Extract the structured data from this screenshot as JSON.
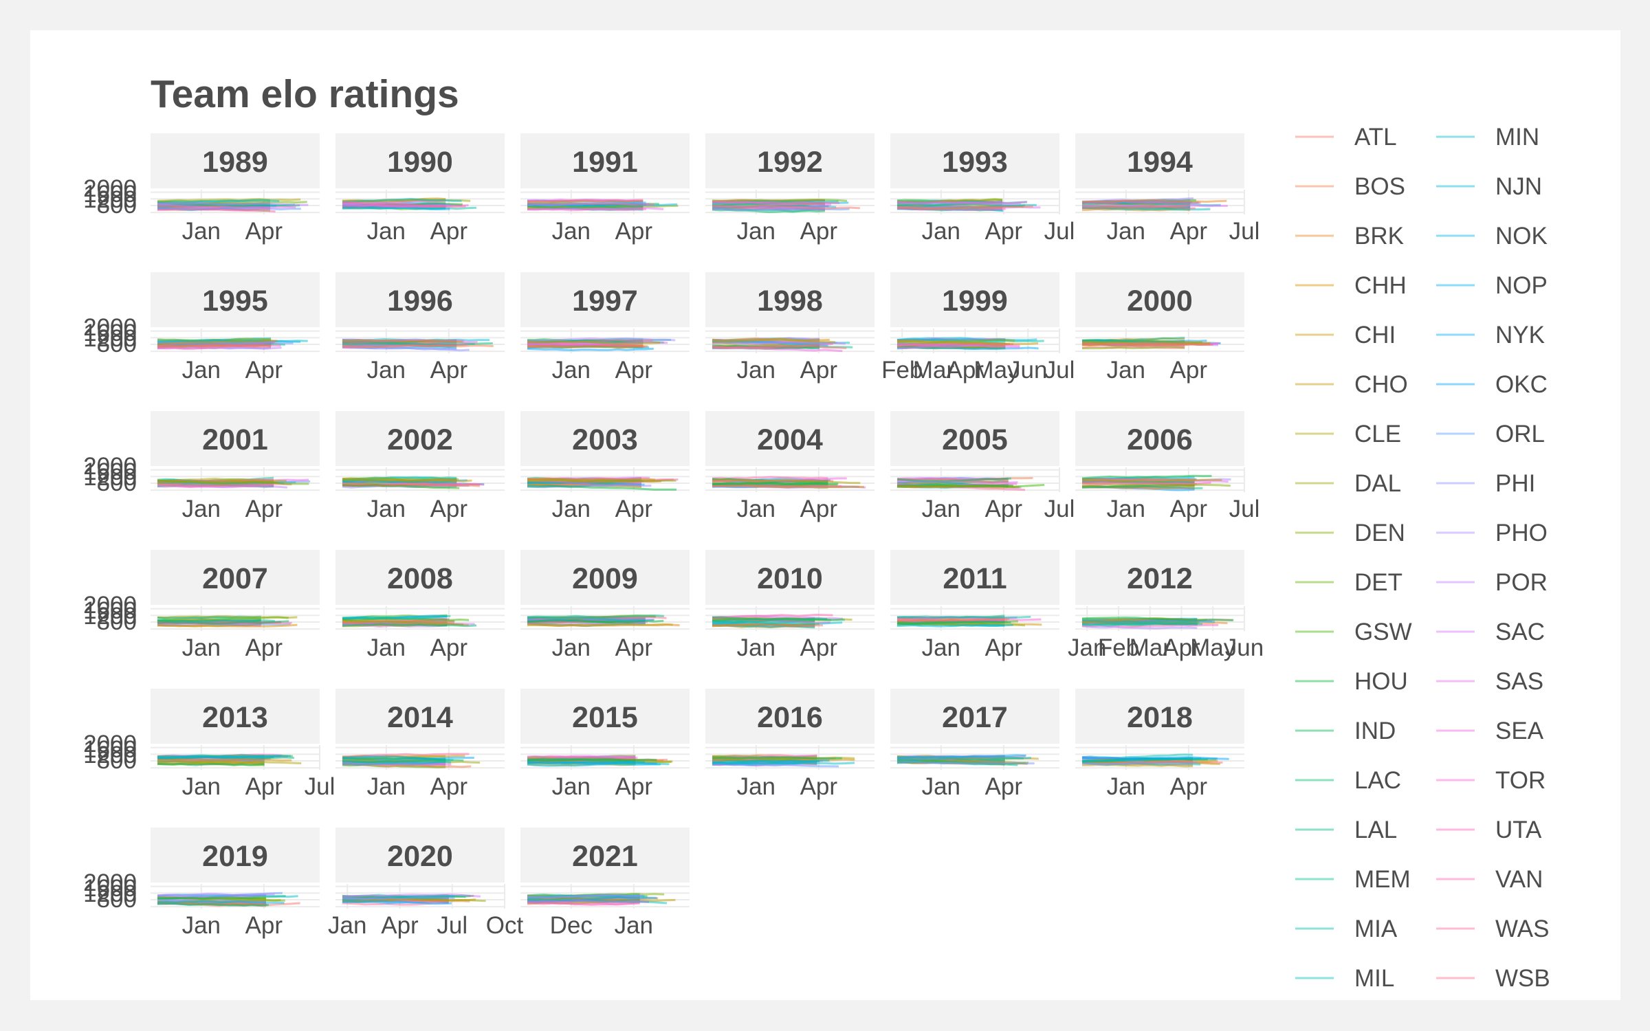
{
  "chart_data": {
    "type": "line",
    "title": "Team elo ratings",
    "xlabel": "",
    "ylabel": "",
    "ylim": [
      1200,
      2100
    ],
    "y_ticks": [
      "2000",
      "1600",
      "1200",
      "800"
    ],
    "grid": true,
    "legend_position": "right",
    "legend_ncol": 2,
    "legend_entries": [
      "ATL",
      "BOS",
      "BRK",
      "CHH",
      "CHI",
      "CHO",
      "CLE",
      "DAL",
      "DEN",
      "DET",
      "GSW",
      "HOU",
      "IND",
      "LAC",
      "LAL",
      "MEM",
      "MIA",
      "MIL",
      "MIN",
      "NJN",
      "NOK",
      "NOP",
      "NYK",
      "OKC",
      "ORL",
      "PHI",
      "PHO",
      "POR",
      "SAC",
      "SAS",
      "SEA",
      "TOR",
      "UTA",
      "VAN",
      "WAS",
      "WSB"
    ],
    "legend_colors": [
      "#f8766d",
      "#f07e4e",
      "#e7861b",
      "#db8e00",
      "#cd9600",
      "#be9c00",
      "#aca300",
      "#99a800",
      "#82ad00",
      "#67b100",
      "#3eb500",
      "#00b83c",
      "#00bb59",
      "#00bd70",
      "#00bf84",
      "#00c097",
      "#00c1a9",
      "#00c0b9",
      "#00bec9",
      "#00bbd8",
      "#00b7e5",
      "#00b2f0",
      "#00acfc",
      "#00a5ff",
      "#619cff",
      "#8b93ff",
      "#aa89ff",
      "#c27fff",
      "#d675fb",
      "#e56cf0",
      "#f164e4",
      "#fa62d4",
      "#ff61c3",
      "#ff63b1",
      "#ff689e",
      "#fe6e8a"
    ],
    "facets": [
      {
        "year": "1989",
        "x_ticks": [
          "Jan",
          "Apr"
        ]
      },
      {
        "year": "1990",
        "x_ticks": [
          "Jan",
          "Apr"
        ]
      },
      {
        "year": "1991",
        "x_ticks": [
          "Jan",
          "Apr"
        ]
      },
      {
        "year": "1992",
        "x_ticks": [
          "Jan",
          "Apr"
        ]
      },
      {
        "year": "1993",
        "x_ticks": [
          "Jan",
          "Apr",
          "Jul"
        ]
      },
      {
        "year": "1994",
        "x_ticks": [
          "Jan",
          "Apr",
          "Jul"
        ]
      },
      {
        "year": "1995",
        "x_ticks": [
          "Jan",
          "Apr"
        ]
      },
      {
        "year": "1996",
        "x_ticks": [
          "Jan",
          "Apr"
        ]
      },
      {
        "year": "1997",
        "x_ticks": [
          "Jan",
          "Apr"
        ]
      },
      {
        "year": "1998",
        "x_ticks": [
          "Jan",
          "Apr"
        ]
      },
      {
        "year": "1999",
        "x_ticks": [
          "Feb",
          "Mar",
          "Apr",
          "May",
          "Jun",
          "Jul"
        ]
      },
      {
        "year": "2000",
        "x_ticks": [
          "Jan",
          "Apr"
        ]
      },
      {
        "year": "2001",
        "x_ticks": [
          "Jan",
          "Apr"
        ]
      },
      {
        "year": "2002",
        "x_ticks": [
          "Jan",
          "Apr"
        ]
      },
      {
        "year": "2003",
        "x_ticks": [
          "Jan",
          "Apr"
        ]
      },
      {
        "year": "2004",
        "x_ticks": [
          "Jan",
          "Apr"
        ]
      },
      {
        "year": "2005",
        "x_ticks": [
          "Jan",
          "Apr",
          "Jul"
        ]
      },
      {
        "year": "2006",
        "x_ticks": [
          "Jan",
          "Apr",
          "Jul"
        ]
      },
      {
        "year": "2007",
        "x_ticks": [
          "Jan",
          "Apr"
        ]
      },
      {
        "year": "2008",
        "x_ticks": [
          "Jan",
          "Apr"
        ]
      },
      {
        "year": "2009",
        "x_ticks": [
          "Jan",
          "Apr"
        ]
      },
      {
        "year": "2010",
        "x_ticks": [
          "Jan",
          "Apr"
        ]
      },
      {
        "year": "2011",
        "x_ticks": [
          "Jan",
          "Apr"
        ]
      },
      {
        "year": "2012",
        "x_ticks": [
          "Jan",
          "Feb",
          "Mar",
          "Apr",
          "May",
          "Jun"
        ]
      },
      {
        "year": "2013",
        "x_ticks": [
          "Jan",
          "Apr",
          "Jul"
        ]
      },
      {
        "year": "2014",
        "x_ticks": [
          "Jan",
          "Apr"
        ]
      },
      {
        "year": "2015",
        "x_ticks": [
          "Jan",
          "Apr"
        ]
      },
      {
        "year": "2016",
        "x_ticks": [
          "Jan",
          "Apr"
        ]
      },
      {
        "year": "2017",
        "x_ticks": [
          "Jan",
          "Apr"
        ]
      },
      {
        "year": "2018",
        "x_ticks": [
          "Jan",
          "Apr"
        ]
      },
      {
        "year": "2019",
        "x_ticks": [
          "Jan",
          "Apr"
        ]
      },
      {
        "year": "2020",
        "x_ticks": [
          "Jan",
          "Apr",
          "Jul",
          "Oct"
        ]
      },
      {
        "year": "2021",
        "x_ticks": [
          "Dec",
          "Jan"
        ]
      }
    ]
  }
}
